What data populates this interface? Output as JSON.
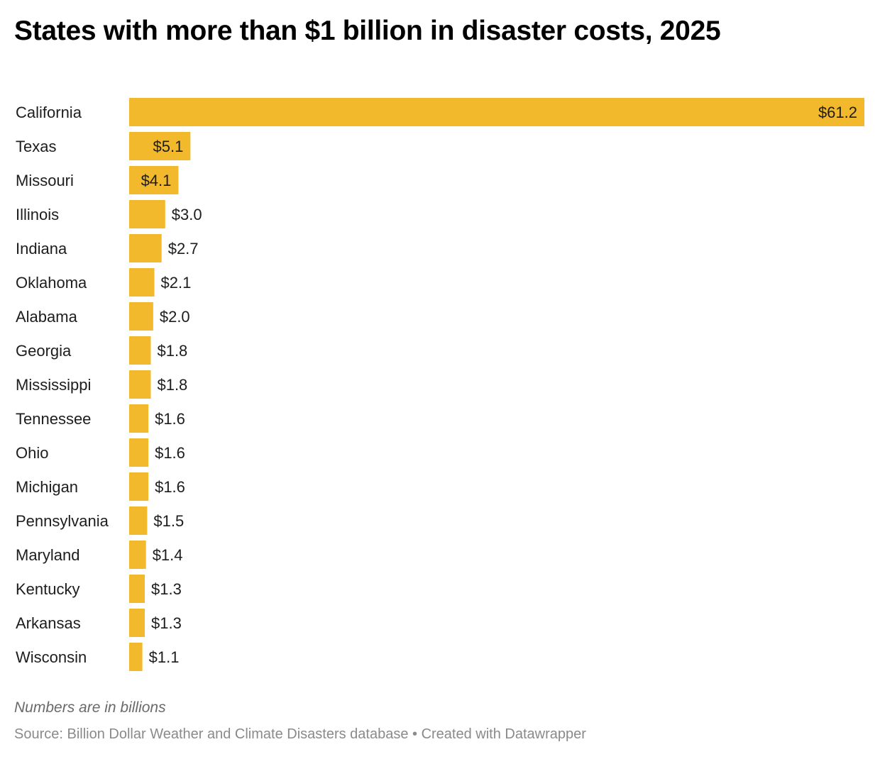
{
  "chart_data": {
    "type": "bar",
    "orientation": "horizontal",
    "title": "States with more than $1 billion in disaster costs, 2025",
    "xlabel": "",
    "ylabel": "",
    "value_prefix": "$",
    "value_decimals": 1,
    "xlim": [
      0,
      61.2
    ],
    "grid": false,
    "bar_color": "#f2b92c",
    "categories": [
      "California",
      "Texas",
      "Missouri",
      "Illinois",
      "Indiana",
      "Oklahoma",
      "Alabama",
      "Georgia",
      "Mississippi",
      "Tennessee",
      "Ohio",
      "Michigan",
      "Pennsylvania",
      "Maryland",
      "Kentucky",
      "Arkansas",
      "Wisconsin"
    ],
    "values": [
      61.2,
      5.1,
      4.1,
      3.0,
      2.7,
      2.1,
      2.0,
      1.8,
      1.8,
      1.6,
      1.6,
      1.6,
      1.5,
      1.4,
      1.3,
      1.3,
      1.1
    ],
    "data_labels": [
      "$61.2",
      "$5.1",
      "$4.1",
      "$3.0",
      "$2.7",
      "$2.1",
      "$2.0",
      "$1.8",
      "$1.8",
      "$1.6",
      "$1.6",
      "$1.6",
      "$1.5",
      "$1.4",
      "$1.3",
      "$1.3",
      "$1.1"
    ]
  },
  "notes": "Numbers are in billions",
  "footer": "Source: Billion Dollar Weather and Climate Disasters database • Created with Datawrapper"
}
